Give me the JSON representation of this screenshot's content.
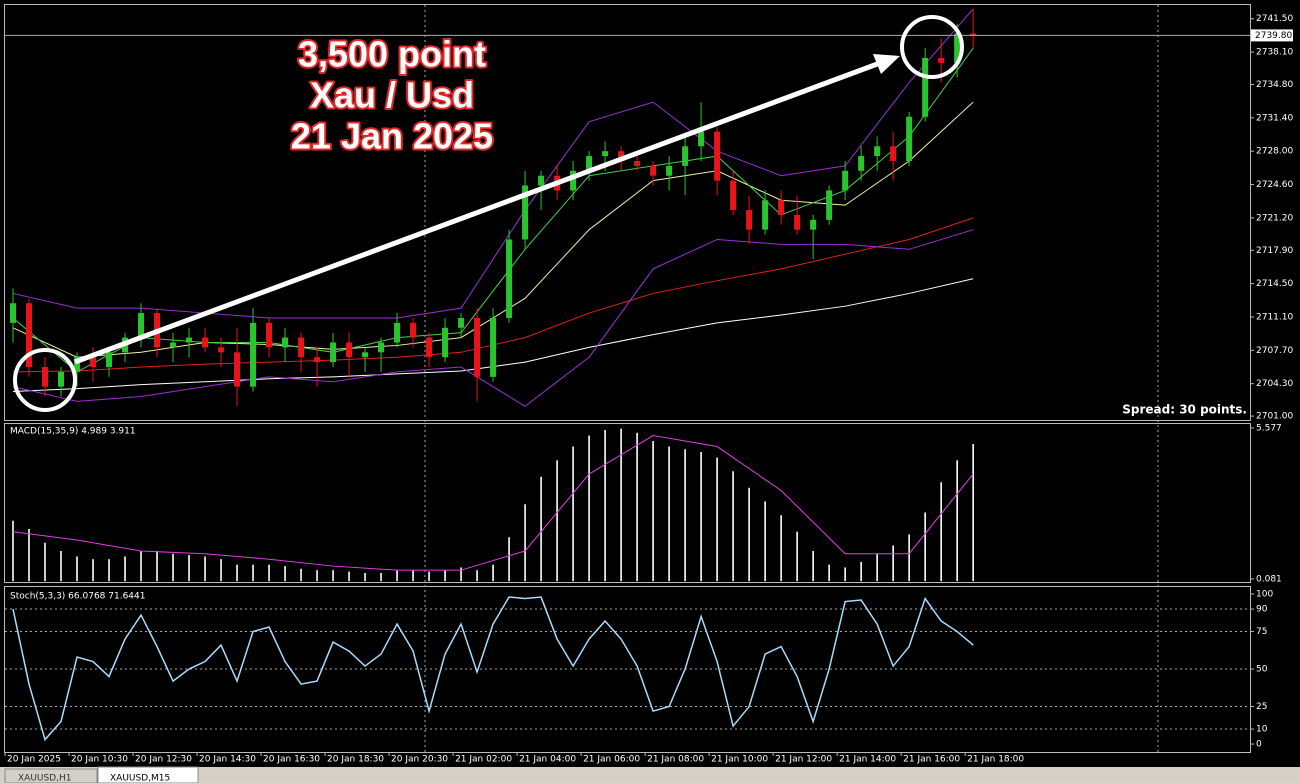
{
  "chart_data": [
    {
      "type": "candlestick",
      "candles": [
        [
          2710.5,
          2714,
          2708.5,
          2712.5
        ],
        [
          2712.5,
          2713,
          2705,
          2706
        ],
        [
          2706,
          2707,
          2703,
          2704
        ],
        [
          2704,
          2706,
          2703,
          2705.5
        ],
        [
          2705.5,
          2707.5,
          2704,
          2707
        ],
        [
          2707,
          2708,
          2704.5,
          2706
        ],
        [
          2706,
          2708,
          2705,
          2707.5
        ],
        [
          2707.5,
          2709.5,
          2706.5,
          2709
        ],
        [
          2709,
          2712.5,
          2708,
          2711.5
        ],
        [
          2711.5,
          2712,
          2707,
          2708
        ],
        [
          2708,
          2709.5,
          2706.5,
          2708.5
        ],
        [
          2708.5,
          2710,
          2707,
          2709
        ],
        [
          2709,
          2710,
          2707.5,
          2708
        ],
        [
          2708,
          2709,
          2706,
          2707.5
        ],
        [
          2707.5,
          2710,
          2702,
          2704
        ],
        [
          2704,
          2712,
          2703.5,
          2710.5
        ],
        [
          2710.5,
          2711,
          2707,
          2708
        ],
        [
          2708,
          2710,
          2706.5,
          2709
        ],
        [
          2709,
          2709.5,
          2705.5,
          2707
        ],
        [
          2707,
          2708,
          2704,
          2706.5
        ],
        [
          2706.5,
          2709.5,
          2706,
          2708.5
        ],
        [
          2708.5,
          2709.5,
          2705,
          2707
        ],
        [
          2707,
          2708,
          2705.5,
          2707.5
        ],
        [
          2707.5,
          2709,
          2705.5,
          2708.5
        ],
        [
          2708.5,
          2711.5,
          2708,
          2710.5
        ],
        [
          2710.5,
          2711,
          2708,
          2709
        ],
        [
          2709,
          2709.5,
          2706,
          2707
        ],
        [
          2707,
          2711,
          2706.5,
          2710
        ],
        [
          2710,
          2711.5,
          2709,
          2711
        ],
        [
          2711,
          2712,
          2702.5,
          2705
        ],
        [
          2705,
          2712,
          2704.5,
          2711
        ],
        [
          2711,
          2720,
          2710.5,
          2719
        ],
        [
          2719,
          2726,
          2718,
          2724.5
        ],
        [
          2724.5,
          2726,
          2722,
          2725.5
        ],
        [
          2725.5,
          2726.5,
          2723,
          2724
        ],
        [
          2724,
          2727,
          2723,
          2726
        ],
        [
          2726,
          2728,
          2725,
          2727.5
        ],
        [
          2727.5,
          2729,
          2726,
          2728
        ],
        [
          2728,
          2728.5,
          2726,
          2727
        ],
        [
          2727,
          2728,
          2726,
          2726.5
        ],
        [
          2726.5,
          2727,
          2724.5,
          2725.5
        ],
        [
          2725.5,
          2727.5,
          2724,
          2726.5
        ],
        [
          2726.5,
          2729.5,
          2723.5,
          2728.5
        ],
        [
          2728.5,
          2733,
          2727,
          2730
        ],
        [
          2730,
          2730.5,
          2723.5,
          2725
        ],
        [
          2725,
          2726,
          2721.5,
          2722
        ],
        [
          2722,
          2723.5,
          2718.5,
          2720
        ],
        [
          2720,
          2724,
          2719.5,
          2723
        ],
        [
          2723,
          2724,
          2720.5,
          2721.5
        ],
        [
          2721.5,
          2723.5,
          2719.5,
          2720
        ],
        [
          2720,
          2721.5,
          2717,
          2721
        ],
        [
          2721,
          2724.5,
          2720.5,
          2724
        ],
        [
          2724,
          2727,
          2723,
          2726
        ],
        [
          2726,
          2728.5,
          2725,
          2727.5
        ],
        [
          2727.5,
          2729.5,
          2726,
          2728.5
        ],
        [
          2728.5,
          2730,
          2725,
          2727
        ],
        [
          2727,
          2732,
          2726.5,
          2731.5
        ],
        [
          2731.5,
          2738.5,
          2731,
          2737.5
        ],
        [
          2737.5,
          2739.5,
          2735,
          2737
        ],
        [
          2737,
          2741,
          2735.5,
          2740
        ],
        [
          2740,
          2742.5,
          2738.5,
          2739.8
        ]
      ],
      "up_color": "#2ac42f",
      "down_color": "#e8141c",
      "xlim": [
        -0.5,
        77.3
      ],
      "ylim": [
        2700.6,
        2742.9
      ],
      "yticks": [
        {
          "value": 2741.5,
          "label": "2741.50"
        },
        {
          "value": 2738.1,
          "label": "2738.10"
        },
        {
          "value": 2734.8,
          "label": "2734.80"
        },
        {
          "value": 2731.4,
          "label": "2731.40"
        },
        {
          "value": 2728,
          "label": "2728.00"
        },
        {
          "value": 2724.6,
          "label": "2724.60"
        },
        {
          "value": 2721.2,
          "label": "2721.20"
        },
        {
          "value": 2717.9,
          "label": "2717.90"
        },
        {
          "value": 2714.5,
          "label": "2714.50"
        },
        {
          "value": 2711.1,
          "label": "2711.10"
        },
        {
          "value": 2707.7,
          "label": "2707.70"
        },
        {
          "value": 2704.3,
          "label": "2704.30"
        },
        {
          "value": 2701,
          "label": "2701.00"
        }
      ],
      "xticks": [
        {
          "value": -0.5,
          "label": "20 Jan 2025"
        },
        {
          "value": 3.5,
          "label": "20 Jan 10:30"
        },
        {
          "value": 7.5,
          "label": "20 Jan 12:30"
        },
        {
          "value": 11.5,
          "label": "20 Jan 14:30"
        },
        {
          "value": 15.5,
          "label": "20 Jan 16:30"
        },
        {
          "value": 19.5,
          "label": "20 Jan 18:30"
        },
        {
          "value": 23.5,
          "label": "20 Jan 20:30"
        },
        {
          "value": 27.5,
          "label": "21 Jan 02:00"
        },
        {
          "value": 31.5,
          "label": "21 Jan 04:00"
        },
        {
          "value": 35.5,
          "label": "21 Jan 06:00"
        },
        {
          "value": 39.5,
          "label": "21 Jan 08:00"
        },
        {
          "value": 43.5,
          "label": "21 Jan 10:00"
        },
        {
          "value": 47.5,
          "label": "21 Jan 12:00"
        },
        {
          "value": 51.5,
          "label": "21 Jan 14:00"
        },
        {
          "value": 55.5,
          "label": "21 Jan 16:00"
        },
        {
          "value": 59.5,
          "label": "21 Jan 18:00"
        }
      ],
      "overlay_x": [
        0,
        4,
        8,
        12,
        16,
        20,
        24,
        28,
        32,
        36,
        40,
        44,
        48,
        52,
        56,
        60
      ],
      "overlays": [
        {
          "color": "#ffffff",
          "values": [
            2703.5,
            2703.8,
            2704.2,
            2704.5,
            2704.8,
            2705,
            2705.3,
            2705.6,
            2706.5,
            2708,
            2709.3,
            2710.5,
            2711.3,
            2712.2,
            2713.5,
            2715
          ]
        },
        {
          "color": "#e02020",
          "values": [
            2705.5,
            2705.6,
            2706,
            2706.3,
            2706.5,
            2706.7,
            2707,
            2707.5,
            2709,
            2711.5,
            2713.5,
            2714.8,
            2716,
            2717.5,
            2719,
            2721.2
          ]
        },
        {
          "color": "#f0f0a0",
          "values": [
            2710,
            2707,
            2707.5,
            2708.5,
            2708.3,
            2707.8,
            2708.2,
            2709,
            2713,
            2720,
            2725,
            2726,
            2723,
            2722.5,
            2727,
            2733
          ]
        },
        {
          "color": "#44d044",
          "values": [
            2711,
            2705.5,
            2709,
            2708.5,
            2708.5,
            2707.5,
            2709,
            2709.5,
            2718,
            2725.5,
            2726.5,
            2727.5,
            2721.5,
            2724,
            2729.5,
            2738.5
          ]
        },
        {
          "color": "#9b30d8",
          "values": [
            2713.5,
            2712,
            2712,
            2711.5,
            2711,
            2711,
            2711,
            2712,
            2722,
            2731,
            2733,
            2728,
            2725.5,
            2726.5,
            2735,
            2742.5
          ]
        },
        {
          "color": "#9b30d8",
          "values": [
            2704,
            2702.5,
            2703,
            2704,
            2705,
            2704.5,
            2705.5,
            2706,
            2702,
            2707,
            2716,
            2719,
            2718.5,
            2718.5,
            2718,
            2720
          ]
        }
      ],
      "current_price": {
        "value": 2739.8,
        "label": "2739.80"
      },
      "annotations": [
        "3,500 point",
        "Xau / Usd",
        "21 Jan 2025"
      ],
      "spread": "Spread: 30 points."
    },
    {
      "type": "bar",
      "title": "MACD(15,35,9) 4.989 3.911",
      "values": [
        2.2,
        1.9,
        1.4,
        1.1,
        0.9,
        0.8,
        0.8,
        0.9,
        1.1,
        1.1,
        1,
        0.95,
        0.9,
        0.8,
        0.6,
        0.6,
        0.6,
        0.55,
        0.45,
        0.4,
        0.4,
        0.35,
        0.3,
        0.3,
        0.4,
        0.4,
        0.35,
        0.4,
        0.5,
        0.4,
        0.6,
        1.6,
        2.8,
        3.8,
        4.4,
        4.9,
        5.3,
        5.5,
        5.55,
        5.4,
        5.1,
        4.9,
        4.8,
        4.7,
        4.5,
        4,
        3.4,
        2.9,
        2.4,
        1.8,
        1.1,
        0.6,
        0.5,
        0.7,
        1,
        1.3,
        1.7,
        2.5,
        3.6,
        4.4,
        4.99
      ],
      "color": "#ffffff",
      "xlim": [
        -0.5,
        77.3
      ],
      "ylim": [
        -0.03,
        5.72
      ],
      "yticks": [
        5.577,
        0.081
      ],
      "signal": {
        "color": "#e040e0",
        "x": [
          0,
          4,
          8,
          12,
          16,
          20,
          24,
          28,
          32,
          36,
          40,
          44,
          48,
          52,
          56,
          60
        ],
        "values": [
          1.8,
          1.5,
          1.1,
          1,
          0.8,
          0.55,
          0.4,
          0.4,
          1.1,
          3.9,
          5.3,
          4.9,
          3.3,
          1,
          1,
          3.9
        ]
      }
    },
    {
      "type": "line",
      "title": "Stoch(5,3,3) 66.0768 71.6441",
      "values": [
        90,
        40,
        3,
        15,
        58,
        55,
        45,
        70,
        86,
        65,
        42,
        50,
        55,
        66,
        42,
        75,
        78,
        55,
        40,
        42,
        68,
        62,
        52,
        60,
        80,
        62,
        22,
        60,
        80,
        48,
        80,
        98,
        97,
        98,
        70,
        52,
        70,
        82,
        70,
        52,
        22,
        25,
        50,
        85,
        55,
        12,
        25,
        60,
        65,
        45,
        15,
        50,
        95,
        96,
        80,
        52,
        65,
        97,
        82,
        75,
        66
      ],
      "color": "#a8dcff",
      "xlim": [
        -0.5,
        77.3
      ],
      "ylim": [
        -5.3,
        104.7
      ],
      "yticks": [
        100,
        90,
        75,
        50,
        25,
        10,
        0
      ],
      "grid": true
    }
  ],
  "tabs": [
    "XAUUSD,H1",
    "XAUUSD,M15"
  ]
}
